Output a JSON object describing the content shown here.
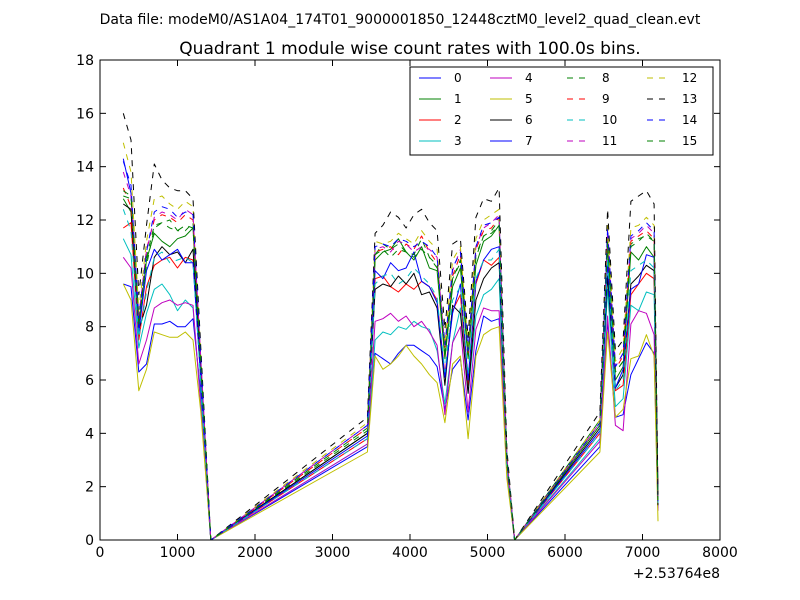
{
  "figure": {
    "suptitle": "Data file: modeM0/AS1A04_174T01_9000001850_12448cztM0_level2_quad_clean.evt"
  },
  "chart_data": {
    "type": "line",
    "title": "Quadrant 1 module wise count rates with 100.0s bins.",
    "xlabel": "",
    "ylabel": "",
    "xlim": [
      0,
      8000
    ],
    "ylim": [
      0,
      18
    ],
    "x_offset_label": "+2.53764e8",
    "xticks": [
      0,
      1000,
      2000,
      3000,
      4000,
      5000,
      6000,
      7000,
      8000
    ],
    "yticks": [
      0,
      2,
      4,
      6,
      8,
      10,
      12,
      14,
      16,
      18
    ],
    "legend_position": "upper right",
    "legend_columns": 4,
    "x": [
      300,
      400,
      500,
      600,
      700,
      800,
      900,
      1000,
      1100,
      1200,
      1300,
      1430,
      3450,
      3550,
      3650,
      3750,
      3850,
      3950,
      4050,
      4150,
      4250,
      4350,
      4450,
      4550,
      4650,
      4750,
      4850,
      4950,
      5050,
      5150,
      5250,
      5350,
      6450,
      6550,
      6650,
      6750,
      6850,
      6950,
      7050,
      7150,
      7200
    ],
    "series": [
      {
        "name": "0",
        "color": "#0000ff",
        "dashed": false,
        "values": [
          9.6,
          9.5,
          6.3,
          6.6,
          8.1,
          8.1,
          8.2,
          8.0,
          8.0,
          8.3,
          5.5,
          0,
          3.5,
          7.0,
          6.8,
          6.6,
          7.0,
          7.3,
          7.3,
          7.1,
          6.9,
          6.5,
          4.9,
          6.4,
          6.8,
          4.5,
          7.1,
          8.4,
          8.2,
          8.3,
          2.5,
          0,
          3.5,
          8.2,
          4.6,
          4.7,
          6.2,
          6.8,
          7.4,
          7.0,
          1.2
        ]
      },
      {
        "name": "1",
        "color": "#008000",
        "dashed": false,
        "values": [
          12.8,
          12.3,
          8.0,
          10.5,
          11.5,
          11.2,
          11.0,
          11.3,
          11.4,
          11.7,
          6.5,
          0,
          4.0,
          10.5,
          10.8,
          10.9,
          11.3,
          10.8,
          10.5,
          11.0,
          10.2,
          10.1,
          6.8,
          9.5,
          10.2,
          6.8,
          10.3,
          11.2,
          11.4,
          11.8,
          3.0,
          0,
          4.5,
          11.0,
          6.0,
          6.5,
          10.8,
          10.5,
          11.0,
          10.6,
          1.5
        ]
      },
      {
        "name": "2",
        "color": "#ff0000",
        "dashed": false,
        "values": [
          11.7,
          11.9,
          7.5,
          9.5,
          10.3,
          10.5,
          10.6,
          10.2,
          10.6,
          10.5,
          6.0,
          0,
          3.8,
          9.8,
          9.9,
          9.5,
          9.3,
          9.6,
          9.4,
          9.7,
          9.5,
          9.0,
          6.2,
          8.6,
          9.2,
          5.8,
          9.6,
          10.5,
          10.3,
          10.6,
          2.8,
          0,
          4.0,
          10.5,
          5.6,
          5.8,
          9.2,
          9.6,
          10.0,
          9.8,
          1.4
        ]
      },
      {
        "name": "3",
        "color": "#00bfbf",
        "dashed": false,
        "values": [
          11.3,
          10.7,
          7.2,
          8.5,
          9.4,
          9.6,
          9.2,
          8.6,
          9.0,
          8.7,
          5.2,
          0,
          3.6,
          7.5,
          7.8,
          7.7,
          8.0,
          7.9,
          8.2,
          8.0,
          7.9,
          7.1,
          5.1,
          7.4,
          8.7,
          5.5,
          8.4,
          9.2,
          9.4,
          9.8,
          2.6,
          0,
          3.8,
          9.4,
          5.0,
          5.3,
          8.8,
          8.6,
          9.3,
          9.2,
          1.3
        ]
      },
      {
        "name": "4",
        "color": "#bf00bf",
        "dashed": false,
        "values": [
          10.6,
          10.2,
          6.6,
          7.5,
          8.7,
          8.9,
          9.0,
          8.8,
          8.9,
          8.8,
          5.0,
          0,
          3.6,
          8.2,
          8.3,
          8.5,
          8.2,
          8.4,
          8.0,
          8.2,
          7.8,
          7.3,
          4.7,
          7.4,
          8.0,
          4.8,
          7.9,
          8.7,
          8.6,
          8.6,
          2.5,
          0,
          3.7,
          8.4,
          4.3,
          4.1,
          8.1,
          8.6,
          8.5,
          7.7,
          1.1
        ]
      },
      {
        "name": "5",
        "color": "#bfbf00",
        "dashed": false,
        "values": [
          9.6,
          9.0,
          5.6,
          6.4,
          7.8,
          7.7,
          7.6,
          7.6,
          7.8,
          7.5,
          4.8,
          0,
          3.3,
          6.9,
          6.4,
          6.6,
          6.9,
          7.3,
          6.9,
          6.6,
          6.2,
          5.9,
          4.4,
          6.6,
          6.9,
          3.8,
          6.9,
          7.7,
          7.9,
          8.0,
          2.3,
          0,
          3.3,
          7.8,
          4.6,
          4.9,
          6.8,
          6.9,
          7.7,
          6.9,
          0.7
        ]
      },
      {
        "name": "6",
        "color": "#000000",
        "dashed": false,
        "values": [
          12.6,
          12.4,
          7.9,
          8.8,
          10.6,
          11.0,
          10.7,
          10.8,
          10.4,
          10.9,
          6.2,
          0,
          4.0,
          9.4,
          9.6,
          9.5,
          9.9,
          9.6,
          10.0,
          9.2,
          9.3,
          8.7,
          5.8,
          8.8,
          8.5,
          5.5,
          9.0,
          9.8,
          10.2,
          10.4,
          2.9,
          0,
          4.2,
          9.9,
          5.7,
          6.2,
          9.6,
          9.9,
          10.3,
          10.1,
          1.3
        ]
      },
      {
        "name": "7",
        "color": "#0000ff",
        "dashed": false,
        "values": [
          14.3,
          13.0,
          7.8,
          10.1,
          10.9,
          10.5,
          10.7,
          10.9,
          10.4,
          10.4,
          6.0,
          0,
          3.9,
          10.1,
          9.8,
          10.4,
          10.1,
          10.2,
          10.8,
          9.7,
          9.5,
          8.9,
          6.1,
          8.5,
          9.6,
          6.0,
          9.7,
          10.5,
          10.9,
          11.0,
          2.9,
          0,
          4.1,
          10.4,
          5.7,
          6.4,
          9.4,
          9.6,
          10.7,
          10.6,
          1.4
        ]
      },
      {
        "name": "8",
        "color": "#008000",
        "dashed": true,
        "values": [
          12.9,
          12.8,
          8.2,
          10.3,
          11.7,
          11.9,
          12.0,
          11.6,
          11.6,
          11.9,
          6.6,
          0,
          4.2,
          10.7,
          11.1,
          10.9,
          11.1,
          10.8,
          10.7,
          11.3,
          10.6,
          10.2,
          6.9,
          9.8,
          10.4,
          6.8,
          10.7,
          11.4,
          11.6,
          12.0,
          3.0,
          0,
          4.3,
          11.3,
          6.3,
          6.7,
          11.1,
          11.3,
          11.4,
          11.2,
          1.5
        ]
      },
      {
        "name": "9",
        "color": "#ff0000",
        "dashed": true,
        "values": [
          13.2,
          12.5,
          8.3,
          10.9,
          12.0,
          12.2,
          12.1,
          11.9,
          12.2,
          12.0,
          6.7,
          0,
          4.2,
          10.8,
          10.9,
          11.0,
          10.7,
          11.1,
          10.9,
          11.4,
          10.8,
          10.4,
          7.2,
          9.9,
          10.7,
          7.0,
          10.9,
          11.6,
          11.7,
          12.1,
          3.1,
          0,
          4.4,
          11.5,
          6.4,
          6.9,
          11.2,
          11.4,
          11.6,
          11.3,
          1.6
        ]
      },
      {
        "name": "10",
        "color": "#00bfbf",
        "dashed": true,
        "values": [
          12.4,
          11.6,
          7.6,
          9.3,
          10.6,
          10.8,
          10.4,
          10.5,
          10.6,
          10.4,
          5.9,
          0,
          3.8,
          9.6,
          9.9,
          10.0,
          9.6,
          9.8,
          10.2,
          9.9,
          9.6,
          9.1,
          6.3,
          9.0,
          9.5,
          6.2,
          9.8,
          10.5,
          10.5,
          10.9,
          2.8,
          0,
          4.0,
          10.6,
          5.6,
          6.0,
          10.1,
          10.3,
          10.5,
          10.2,
          1.4
        ]
      },
      {
        "name": "11",
        "color": "#bf00bf",
        "dashed": true,
        "values": [
          13.8,
          12.9,
          8.4,
          10.8,
          12.1,
          12.3,
          12.2,
          12.0,
          12.4,
          12.2,
          6.8,
          0,
          4.3,
          10.9,
          11.0,
          10.8,
          11.2,
          11.1,
          10.8,
          11.0,
          10.9,
          10.6,
          7.2,
          10.1,
          10.9,
          7.1,
          11.0,
          11.7,
          11.9,
          12.2,
          3.1,
          0,
          4.4,
          11.6,
          6.5,
          7.0,
          11.3,
          11.5,
          11.8,
          11.5,
          1.6
        ]
      },
      {
        "name": "12",
        "color": "#bfbf00",
        "dashed": true,
        "values": [
          14.9,
          13.8,
          8.6,
          11.2,
          12.8,
          12.9,
          12.6,
          12.4,
          12.7,
          12.5,
          7.0,
          0,
          4.4,
          11.2,
          11.1,
          11.2,
          11.5,
          11.3,
          11.1,
          11.6,
          11.2,
          10.9,
          7.4,
          10.5,
          11.0,
          7.3,
          11.3,
          12.0,
          12.2,
          12.4,
          3.2,
          0,
          4.5,
          11.9,
          6.7,
          7.2,
          11.7,
          11.8,
          12.1,
          11.8,
          1.6
        ]
      },
      {
        "name": "13",
        "color": "#000000",
        "dashed": true,
        "values": [
          16.0,
          15.0,
          9.2,
          11.8,
          14.1,
          13.5,
          13.2,
          13.1,
          13.1,
          12.8,
          7.2,
          0,
          4.6,
          11.5,
          11.8,
          12.3,
          12.1,
          11.7,
          12.2,
          12.4,
          11.9,
          11.6,
          7.9,
          11.1,
          11.3,
          7.6,
          12.1,
          12.8,
          12.7,
          13.2,
          3.4,
          0,
          4.8,
          12.4,
          7.1,
          7.5,
          12.7,
          12.9,
          13.1,
          12.6,
          1.7
        ]
      },
      {
        "name": "14",
        "color": "#0000ff",
        "dashed": true,
        "values": [
          14.2,
          13.3,
          8.3,
          10.8,
          12.3,
          12.5,
          12.4,
          12.1,
          12.3,
          12.2,
          6.8,
          0,
          4.3,
          11.0,
          11.1,
          11.0,
          11.3,
          11.2,
          11.0,
          11.2,
          11.0,
          10.6,
          7.3,
          10.2,
          10.8,
          7.1,
          11.0,
          11.8,
          11.9,
          12.1,
          3.1,
          0,
          4.4,
          11.7,
          6.5,
          7.0,
          11.4,
          11.6,
          11.9,
          11.6,
          1.6
        ]
      },
      {
        "name": "15",
        "color": "#008000",
        "dashed": true,
        "values": [
          13.1,
          12.9,
          8.1,
          10.6,
          11.8,
          11.9,
          11.7,
          11.6,
          11.8,
          11.7,
          6.6,
          0,
          4.1,
          10.7,
          10.9,
          10.6,
          10.9,
          10.8,
          10.6,
          10.9,
          10.6,
          10.3,
          7.0,
          9.8,
          10.5,
          6.9,
          10.6,
          11.4,
          11.5,
          11.8,
          3.0,
          0,
          4.3,
          11.2,
          6.3,
          6.7,
          11.0,
          11.2,
          11.5,
          11.2,
          1.5
        ]
      }
    ]
  }
}
